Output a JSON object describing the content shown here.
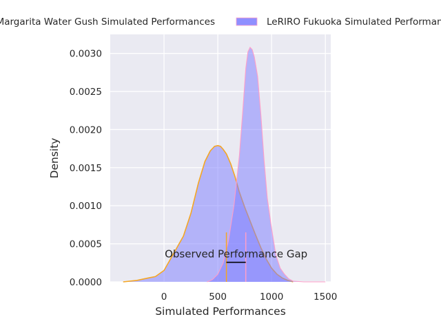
{
  "chart_data": {
    "type": "area",
    "xlabel": "Simulated Performances",
    "ylabel": "Density",
    "xlim": [
      -500,
      1550
    ],
    "ylim": [
      0,
      0.00325
    ],
    "x_ticks": [
      0,
      500,
      1000,
      1500
    ],
    "x_tick_labels": [
      "0",
      "500",
      "1000",
      "1500"
    ],
    "y_ticks": [
      0,
      0.0005,
      0.001,
      0.0015,
      0.002,
      0.0025,
      0.003
    ],
    "y_tick_labels": [
      "0.0000",
      "0.0005",
      "0.0010",
      "0.0015",
      "0.0020",
      "0.0025",
      "0.0030"
    ],
    "grid": true,
    "legend_placement": "top",
    "colors": {
      "fill": "#7b7bff",
      "fill_opacity": 0.5,
      "line_a": "#f5a623",
      "line_b": "#ff9ec8",
      "background": "#eaeaf2",
      "grid": "#ffffff",
      "annotation": "#000000"
    },
    "series": [
      {
        "name": "Margarita Water Gush Simulated Performances",
        "x": [
          -380,
          -250,
          -150,
          -80,
          0,
          60,
          120,
          180,
          250,
          320,
          380,
          430,
          470,
          500,
          525,
          550,
          580,
          620,
          660,
          700,
          750,
          800,
          850,
          900,
          950,
          1000,
          1050,
          1100,
          1150,
          1200
        ],
        "values": [
          0.0,
          2e-05,
          5e-05,
          7e-05,
          0.00015,
          0.0003,
          0.00045,
          0.0006,
          0.0009,
          0.0013,
          0.00158,
          0.00172,
          0.00178,
          0.00179,
          0.00178,
          0.00174,
          0.00168,
          0.00155,
          0.00138,
          0.00118,
          0.00098,
          0.0008,
          0.00062,
          0.00045,
          0.0003,
          0.00018,
          0.0001,
          5e-05,
          2e-05,
          0.0
        ]
      },
      {
        "name": "LeRIRO Fukuoka Simulated Performances",
        "x": [
          400,
          450,
          500,
          550,
          600,
          650,
          700,
          730,
          760,
          780,
          800,
          820,
          840,
          870,
          900,
          930,
          960,
          1000,
          1040,
          1080,
          1120,
          1160,
          1200,
          1300,
          1400,
          1500
        ],
        "values": [
          0.0,
          3e-05,
          0.0001,
          0.00025,
          0.00055,
          0.001,
          0.00165,
          0.0022,
          0.0028,
          0.00302,
          0.00308,
          0.00305,
          0.00295,
          0.0027,
          0.0022,
          0.0016,
          0.0011,
          0.0007,
          0.00035,
          0.00018,
          0.0001,
          4e-05,
          1e-05,
          0.0,
          0.0,
          0.0
        ]
      }
    ],
    "annotation": {
      "text": "Observed Performance Gap",
      "x_start": 580,
      "x_end": 760,
      "y": 0.00032,
      "marker_height": 0.00065
    }
  }
}
